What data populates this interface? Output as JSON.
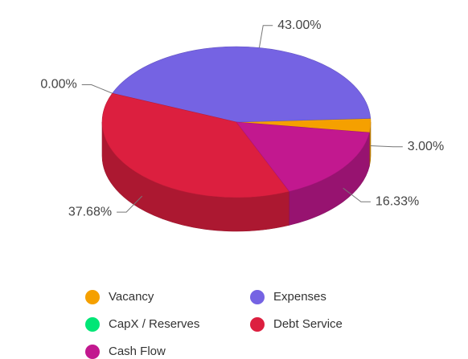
{
  "chart_data": {
    "type": "pie3d",
    "categories": [
      "Vacancy",
      "Expenses",
      "CapX / Reserves",
      "Debt Service",
      "Cash Flow"
    ],
    "values": [
      3.0,
      43.0,
      0.0,
      37.68,
      16.33
    ],
    "value_labels": [
      "3.00%",
      "43.00%",
      "0.00%",
      "37.68%",
      "16.33%"
    ],
    "colors": [
      "#f5a000",
      "#7563e3",
      "#00e676",
      "#dc1f3f",
      "#c2188f"
    ],
    "legend": "bottom"
  }
}
